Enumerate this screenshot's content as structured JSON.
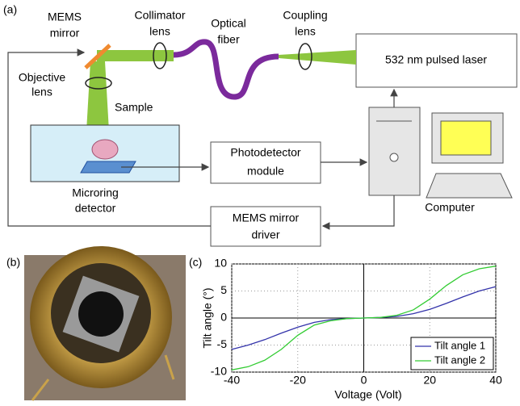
{
  "diagram": {
    "panel_label": "(a)",
    "mems_mirror": [
      "MEMS",
      "mirror"
    ],
    "collimator_lens": [
      "Collimator",
      "lens"
    ],
    "optical_fiber": [
      "Optical",
      "fiber"
    ],
    "coupling_lens": [
      "Coupling",
      "lens"
    ],
    "laser": "532 nm pulsed laser",
    "objective_lens": [
      "Objective",
      "lens"
    ],
    "sample": "Sample",
    "photodetector": [
      "Photodetector",
      "module"
    ],
    "microring_detector": [
      "Microring",
      "detector"
    ],
    "computer": "Computer",
    "mems_driver": [
      "MEMS mirror",
      "driver"
    ]
  },
  "photo": {
    "panel_label": "(b)"
  },
  "chart_data": {
    "type": "line",
    "panel_label": "(c)",
    "x_label": "Voltage (Volt)",
    "y_label": "Tilt angle (°)",
    "x": [
      -40,
      -35,
      -30,
      -25,
      -20,
      -15,
      -10,
      -5,
      0,
      5,
      10,
      15,
      20,
      25,
      30,
      35,
      40
    ],
    "series": [
      {
        "name": "Tilt angle 1",
        "color": "#3333aa",
        "values": [
          -5.8,
          -5.0,
          -4.0,
          -2.8,
          -1.7,
          -0.8,
          -0.3,
          -0.1,
          0,
          0.1,
          0.3,
          0.8,
          1.6,
          2.7,
          3.9,
          5.0,
          5.8
        ]
      },
      {
        "name": "Tilt angle 2",
        "color": "#33cc33",
        "values": [
          -9.6,
          -9.0,
          -7.8,
          -5.8,
          -3.2,
          -1.3,
          -0.5,
          -0.1,
          0,
          0.1,
          0.5,
          1.5,
          3.5,
          6.0,
          8.0,
          9.1,
          9.6
        ]
      }
    ],
    "xlim": [
      -40,
      40
    ],
    "ylim": [
      -10,
      10
    ],
    "xticks": [
      -40,
      -20,
      0,
      20,
      40
    ],
    "yticks": [
      -10,
      -5,
      0,
      5,
      10
    ],
    "grid": true,
    "legend": "lower right"
  }
}
